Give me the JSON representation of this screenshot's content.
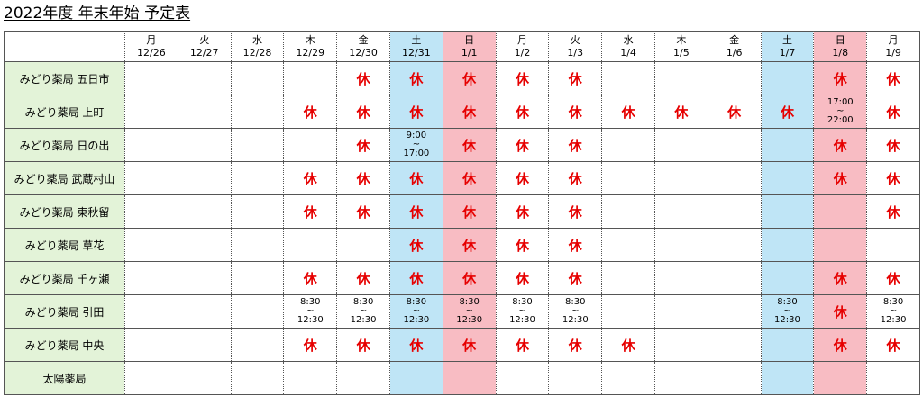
{
  "title": "2022年度 年末年始 予定表",
  "holiday_mark": "休",
  "colors": {
    "pharmacy_column": "#e3f3d8",
    "saturday_column": "#bfe5f6",
    "sunday_column": "#f8bcc3",
    "holiday_text": "#e60000"
  },
  "days": [
    {
      "dow": "月",
      "date": "12/26",
      "kind": "weekday"
    },
    {
      "dow": "火",
      "date": "12/27",
      "kind": "weekday"
    },
    {
      "dow": "水",
      "date": "12/28",
      "kind": "weekday"
    },
    {
      "dow": "木",
      "date": "12/29",
      "kind": "weekday"
    },
    {
      "dow": "金",
      "date": "12/30",
      "kind": "weekday"
    },
    {
      "dow": "土",
      "date": "12/31",
      "kind": "saturday"
    },
    {
      "dow": "日",
      "date": "1/1",
      "kind": "sunday"
    },
    {
      "dow": "月",
      "date": "1/2",
      "kind": "weekday"
    },
    {
      "dow": "火",
      "date": "1/3",
      "kind": "weekday"
    },
    {
      "dow": "水",
      "date": "1/4",
      "kind": "weekday"
    },
    {
      "dow": "木",
      "date": "1/5",
      "kind": "weekday"
    },
    {
      "dow": "金",
      "date": "1/6",
      "kind": "weekday"
    },
    {
      "dow": "土",
      "date": "1/7",
      "kind": "saturday"
    },
    {
      "dow": "日",
      "date": "1/8",
      "kind": "sunday"
    },
    {
      "dow": "月",
      "date": "1/9",
      "kind": "weekday"
    }
  ],
  "pharmacies": [
    {
      "name": "みどり薬局 五日市",
      "cells": [
        "",
        "",
        "",
        "",
        "休",
        "休",
        "休",
        "休",
        "休",
        "",
        "",
        "",
        "",
        "休",
        "休"
      ]
    },
    {
      "name": "みどり薬局 上町",
      "cells": [
        "",
        "",
        "",
        "休",
        "休",
        "休",
        "休",
        "休",
        "休",
        "休",
        "休",
        "休",
        "休",
        [
          "17:00",
          "~",
          "22:00"
        ],
        "休"
      ]
    },
    {
      "name": "みどり薬局 日の出",
      "cells": [
        "",
        "",
        "",
        "",
        "休",
        [
          "9:00",
          "~",
          "17:00"
        ],
        "休",
        "休",
        "休",
        "",
        "",
        "",
        "",
        "休",
        "休"
      ]
    },
    {
      "name": "みどり薬局 武蔵村山",
      "cells": [
        "",
        "",
        "",
        "休",
        "休",
        "休",
        "休",
        "休",
        "休",
        "",
        "",
        "",
        "",
        "休",
        "休"
      ]
    },
    {
      "name": "みどり薬局 東秋留",
      "cells": [
        "",
        "",
        "",
        "休",
        "休",
        "休",
        "休",
        "休",
        "休",
        "",
        "",
        "",
        "",
        "",
        "休"
      ]
    },
    {
      "name": "みどり薬局 草花",
      "cells": [
        "",
        "",
        "",
        "",
        "",
        "休",
        "休",
        "休",
        "休",
        "",
        "",
        "",
        "",
        "",
        ""
      ]
    },
    {
      "name": "みどり薬局 千ヶ瀬",
      "cells": [
        "",
        "",
        "",
        "休",
        "休",
        "休",
        "休",
        "休",
        "休",
        "",
        "",
        "",
        "",
        "休",
        "休"
      ]
    },
    {
      "name": "みどり薬局 引田",
      "cells": [
        "",
        "",
        "",
        [
          "8:30",
          "~",
          "12:30"
        ],
        [
          "8:30",
          "~",
          "12:30"
        ],
        [
          "8:30",
          "~",
          "12:30"
        ],
        [
          "8:30",
          "~",
          "12:30"
        ],
        [
          "8:30",
          "~",
          "12:30"
        ],
        [
          "8:30",
          "~",
          "12:30"
        ],
        "",
        "",
        "",
        [
          "8:30",
          "~",
          "12:30"
        ],
        "休",
        [
          "8:30",
          "~",
          "12:30"
        ]
      ]
    },
    {
      "name": "みどり薬局 中央",
      "cells": [
        "",
        "",
        "",
        "休",
        "休",
        "休",
        "休",
        "休",
        "休",
        "休",
        "",
        "",
        "",
        "休",
        "休"
      ]
    },
    {
      "name": "太陽薬局",
      "cells": [
        "",
        "",
        "",
        "",
        "",
        "",
        "",
        "",
        "",
        "",
        "",
        "",
        "",
        "",
        ""
      ]
    }
  ]
}
